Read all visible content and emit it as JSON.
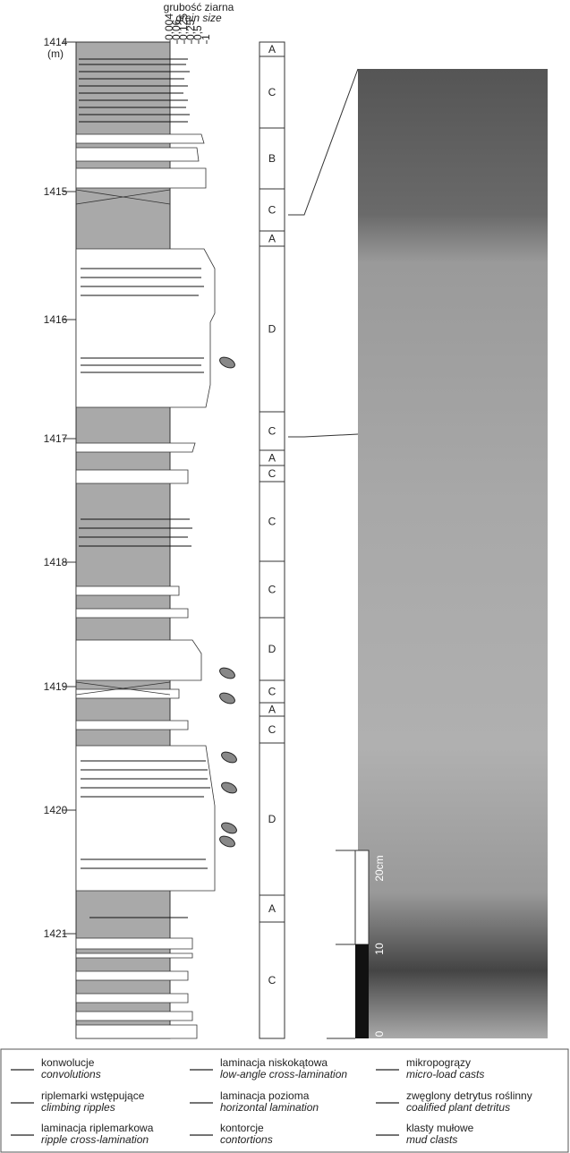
{
  "grain_size": {
    "title_pl": "grubość ziarna",
    "title_en": "grain size",
    "ticks": [
      "0,004",
      "0,06",
      "0,125",
      "0,25",
      "0,5",
      "1"
    ]
  },
  "depth": {
    "unit": "(m)",
    "ticks": [
      1414,
      1415,
      1416,
      1417,
      1418,
      1419,
      1420,
      1421
    ]
  },
  "facies": [
    "A",
    "C",
    "B",
    "C",
    "A",
    "D",
    "C",
    "A",
    "C",
    "C",
    "C",
    "D",
    "C",
    "A",
    "C",
    "D",
    "A",
    "C"
  ],
  "scale": {
    "labels": [
      "0",
      "10",
      "20cm"
    ]
  },
  "legend": [
    {
      "pl": "konwolucje",
      "en": "convolutions"
    },
    {
      "pl": "riplemarki wstępujące",
      "en": "climbing ripples"
    },
    {
      "pl": "laminacja riplemarkowa",
      "en": "ripple cross-lamination"
    },
    {
      "pl": "laminacja niskokątowa",
      "en": "low-angle cross-lamination"
    },
    {
      "pl": "laminacja pozioma",
      "en": "horizontal lamination"
    },
    {
      "pl": "kontorcje",
      "en": "contortions"
    },
    {
      "pl": "mikropogrązy",
      "en": "micro-load casts"
    },
    {
      "pl": "zwęglony detrytus roślinny",
      "en": "coalified plant detritus"
    },
    {
      "pl": "klasty mułowe",
      "en": "mud clasts"
    }
  ]
}
